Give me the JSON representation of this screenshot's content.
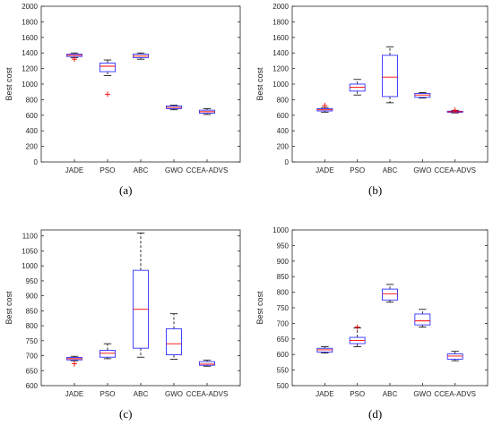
{
  "captions": [
    "(a)",
    "(b)",
    "(c)",
    "(d)"
  ],
  "chart_data": [
    {
      "type": "box",
      "id": "a",
      "ylabel": "Best cost",
      "categories": [
        "JADE",
        "PSO",
        "ABC",
        "GWO",
        "CCEA-ADVS"
      ],
      "ylim": [
        0,
        2000
      ],
      "yticks": [
        0,
        200,
        400,
        600,
        800,
        1000,
        1200,
        1400,
        1600,
        1800,
        2000
      ],
      "boxes": [
        {
          "min": 1340,
          "q1": 1355,
          "median": 1370,
          "q3": 1385,
          "max": 1400,
          "outliers": [
            1320
          ]
        },
        {
          "min": 1110,
          "q1": 1160,
          "median": 1230,
          "q3": 1270,
          "max": 1310,
          "outliers": [
            870
          ]
        },
        {
          "min": 1320,
          "q1": 1340,
          "median": 1360,
          "q3": 1385,
          "max": 1400,
          "outliers": []
        },
        {
          "min": 670,
          "q1": 685,
          "median": 700,
          "q3": 720,
          "max": 730,
          "outliers": []
        },
        {
          "min": 610,
          "q1": 625,
          "median": 645,
          "q3": 665,
          "max": 685,
          "outliers": []
        }
      ]
    },
    {
      "type": "box",
      "id": "b",
      "ylabel": "Best cost",
      "categories": [
        "JADE",
        "PSO",
        "ABC",
        "GWO",
        "CCEA-ADVS"
      ],
      "ylim": [
        0,
        2000
      ],
      "yticks": [
        0,
        200,
        400,
        600,
        800,
        1000,
        1200,
        1400,
        1600,
        1800,
        2000
      ],
      "boxes": [
        {
          "min": 640,
          "q1": 655,
          "median": 670,
          "q3": 685,
          "max": 700,
          "outliers": [
            725
          ]
        },
        {
          "min": 860,
          "q1": 910,
          "median": 960,
          "q3": 1000,
          "max": 1060,
          "outliers": []
        },
        {
          "min": 760,
          "q1": 840,
          "median": 1090,
          "q3": 1370,
          "max": 1480,
          "outliers": []
        },
        {
          "min": 820,
          "q1": 830,
          "median": 860,
          "q3": 880,
          "max": 890,
          "outliers": []
        },
        {
          "min": 630,
          "q1": 638,
          "median": 645,
          "q3": 652,
          "max": 660,
          "outliers": [
            665
          ]
        }
      ]
    },
    {
      "type": "box",
      "id": "c",
      "ylabel": "Best cost",
      "categories": [
        "JADE",
        "PSO",
        "ABC",
        "GWO",
        "CCEA-ADVS"
      ],
      "ylim": [
        600,
        1120
      ],
      "yticks": [
        600,
        650,
        700,
        750,
        800,
        850,
        900,
        950,
        1000,
        1050,
        1100
      ],
      "boxes": [
        {
          "min": 683,
          "q1": 686,
          "median": 690,
          "q3": 694,
          "max": 698,
          "outliers": [
            673
          ]
        },
        {
          "min": 690,
          "q1": 695,
          "median": 708,
          "q3": 718,
          "max": 740,
          "outliers": []
        },
        {
          "min": 695,
          "q1": 725,
          "median": 855,
          "q3": 985,
          "max": 1110,
          "outliers": []
        },
        {
          "min": 688,
          "q1": 703,
          "median": 740,
          "q3": 790,
          "max": 840,
          "outliers": []
        },
        {
          "min": 665,
          "q1": 668,
          "median": 672,
          "q3": 680,
          "max": 685,
          "outliers": []
        }
      ]
    },
    {
      "type": "box",
      "id": "d",
      "ylabel": "Best cost",
      "categories": [
        "JADE",
        "PSO",
        "ABC",
        "GWO",
        "CCEA-ADVS"
      ],
      "ylim": [
        500,
        1000
      ],
      "yticks": [
        500,
        550,
        600,
        650,
        700,
        750,
        800,
        850,
        900,
        950,
        1000
      ],
      "boxes": [
        {
          "min": 605,
          "q1": 608,
          "median": 615,
          "q3": 620,
          "max": 625,
          "outliers": []
        },
        {
          "min": 625,
          "q1": 635,
          "median": 645,
          "q3": 655,
          "max": 685,
          "outliers": [
            688
          ]
        },
        {
          "min": 768,
          "q1": 775,
          "median": 795,
          "q3": 810,
          "max": 825,
          "outliers": []
        },
        {
          "min": 688,
          "q1": 695,
          "median": 708,
          "q3": 730,
          "max": 745,
          "outliers": []
        },
        {
          "min": 580,
          "q1": 585,
          "median": 595,
          "q3": 602,
          "max": 610,
          "outliers": []
        }
      ]
    }
  ],
  "colors": {
    "box": "#3030ff",
    "median": "#ff0000",
    "outlier": "#ff0000",
    "whisker": "#000000",
    "axis": "#262626",
    "tick_text": "#262626"
  }
}
